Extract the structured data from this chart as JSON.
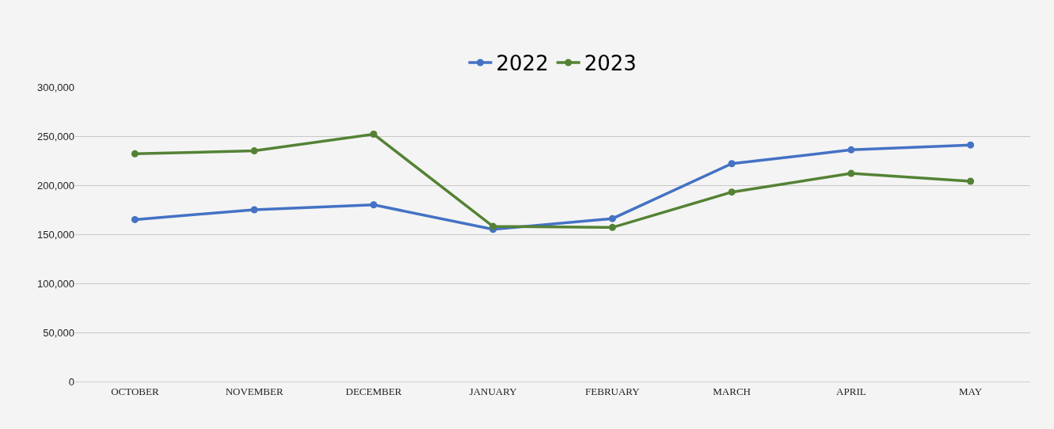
{
  "chart_data": {
    "type": "line",
    "categories": [
      "OCTOBER",
      "NOVEMBER",
      "DECEMBER",
      "JANUARY",
      "FEBRUARY",
      "MARCH",
      "APRIL",
      "MAY"
    ],
    "series": [
      {
        "name": "2022",
        "color": "#4472c4",
        "values": [
          165000,
          175000,
          180000,
          155000,
          166000,
          222000,
          236000,
          241000
        ]
      },
      {
        "name": "2023",
        "color": "#548235",
        "values": [
          232000,
          235000,
          252000,
          158000,
          157000,
          193000,
          212000,
          204000
        ]
      }
    ],
    "ylim": [
      0,
      300000
    ],
    "yticks": [
      {
        "value": 0,
        "label": "0"
      },
      {
        "value": 50000,
        "label": "50,000"
      },
      {
        "value": 100000,
        "label": "100,000"
      },
      {
        "value": 150000,
        "label": "150,000"
      },
      {
        "value": 200000,
        "label": "200,000"
      },
      {
        "value": 250000,
        "label": "250,000"
      },
      {
        "value": 300000,
        "label": "300,000"
      }
    ],
    "grid": "y",
    "legend": "top",
    "marker": "circle",
    "line_style": "solid"
  }
}
